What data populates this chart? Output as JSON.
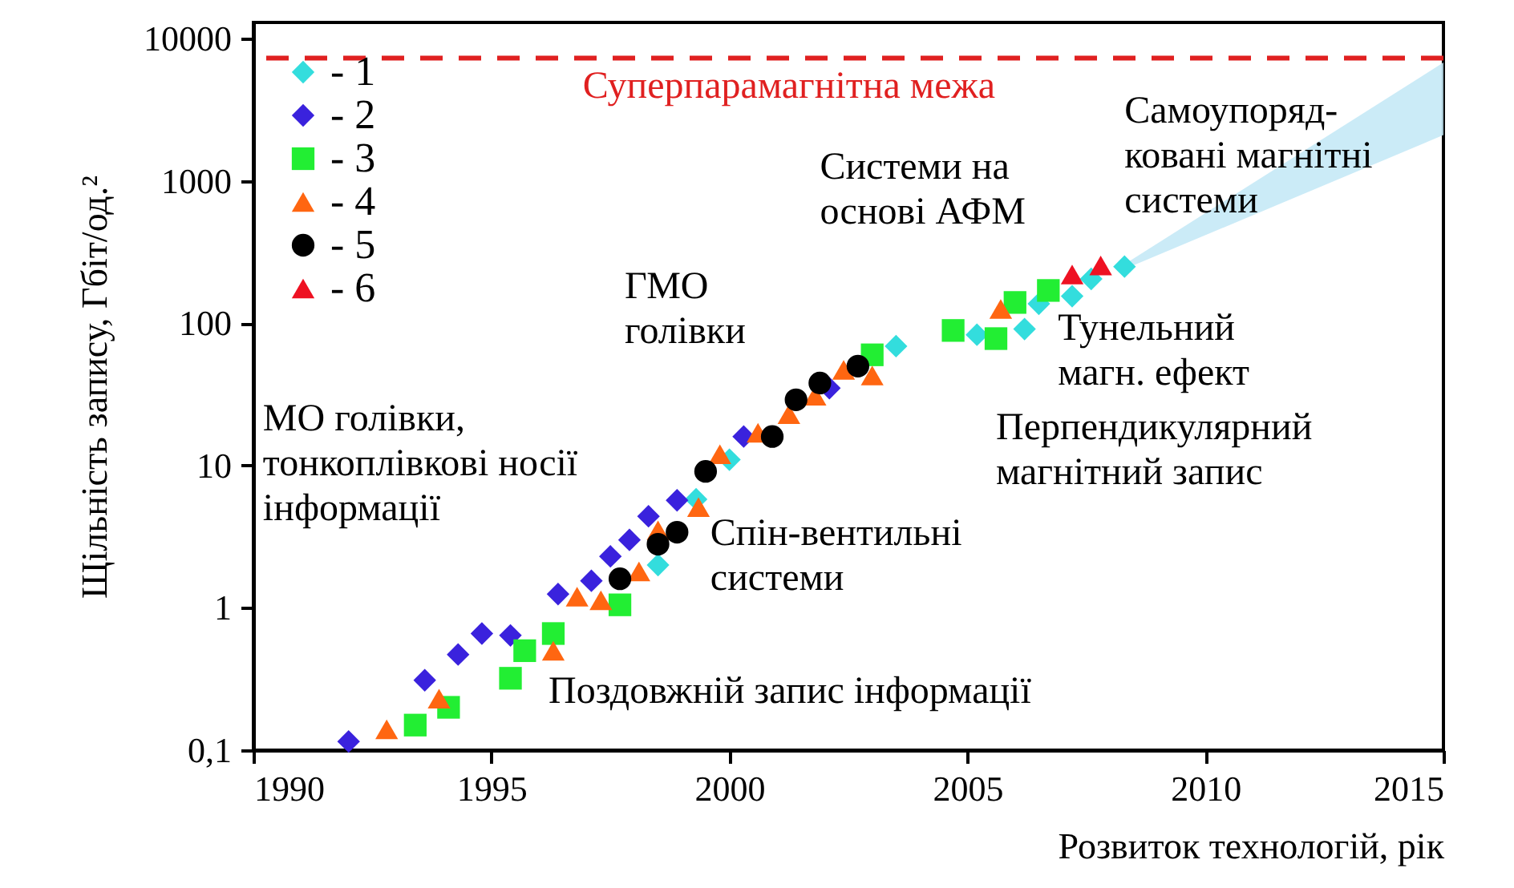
{
  "chart_data": {
    "type": "scatter",
    "xlabel": "Розвиток технологій, рік",
    "ylabel": "Щільність запису, Гбіт/од.²",
    "log": "y",
    "xlim": [
      1990,
      2015
    ],
    "xticks": [
      1990,
      1995,
      2000,
      2005,
      2010,
      2015
    ],
    "ylim": [
      0.1,
      13000
    ],
    "yticks": [
      {
        "value": 0.1,
        "label": "0,1"
      },
      1,
      10,
      100,
      1000,
      10000
    ],
    "grid": false,
    "legend": "top left",
    "series": [
      {
        "name": "- 1",
        "color": "#33dddd",
        "marker": "diamond",
        "x": [
          1998.5,
          1999.3,
          2000.0,
          2003.5,
          2005.2,
          2006.2,
          2006.5,
          2007.2,
          2007.6,
          2008.3
        ],
        "values": [
          2.0,
          5.8,
          11,
          69,
          83,
          91,
          137,
          155,
          205,
          250
        ]
      },
      {
        "name": "- 2",
        "color": "#3a22dd",
        "marker": "diamond",
        "x": [
          1992.0,
          1993.6,
          1994.3,
          1994.8,
          1995.4,
          1996.4,
          1997.1,
          1997.5,
          1997.9,
          1998.3,
          1998.9,
          2000.3,
          2002.1
        ],
        "values": [
          0.115,
          0.31,
          0.47,
          0.66,
          0.64,
          1.25,
          1.55,
          2.3,
          3.0,
          4.4,
          5.7,
          16,
          35
        ]
      },
      {
        "name": "- 3",
        "color": "#22ee33",
        "marker": "square",
        "x": [
          1993.4,
          1994.1,
          1995.4,
          1995.7,
          1996.3,
          1997.7,
          2003.0,
          2004.7,
          2005.6,
          2006.0,
          2006.7
        ],
        "values": [
          0.15,
          0.2,
          0.32,
          0.5,
          0.66,
          1.05,
          60,
          89,
          78,
          140,
          170
        ]
      },
      {
        "name": "- 4",
        "color": "#ff6611",
        "marker": "triangle",
        "x": [
          1992.8,
          1993.9,
          1996.3,
          1996.8,
          1997.3,
          1998.1,
          1998.5,
          1999.35,
          1999.8,
          2000.6,
          2001.25,
          2001.8,
          2002.4,
          2003.0,
          2005.7
        ],
        "values": [
          0.14,
          0.23,
          0.5,
          1.2,
          1.13,
          1.8,
          3.5,
          5.1,
          12,
          17,
          23,
          31,
          47,
          43,
          126
        ]
      },
      {
        "name": "- 5",
        "color": "#000000",
        "marker": "circle",
        "x": [
          1997.7,
          1998.5,
          1998.9,
          1999.5,
          2000.9,
          2001.4,
          2001.9,
          2002.7
        ],
        "values": [
          1.6,
          2.8,
          3.4,
          9.1,
          16,
          29,
          38,
          50
        ]
      },
      {
        "name": "- 6",
        "color": "#ee1122",
        "marker": "triangle",
        "x": [
          2007.2,
          2007.8
        ],
        "values": [
          220,
          255
        ]
      }
    ],
    "ref_lines": [
      {
        "axis": "y",
        "value": 7300,
        "label": "Суперпарамагнітна межа",
        "color": "#e02020",
        "line_style": "dashed"
      }
    ],
    "annotations": [
      "МО голівки,\nтонкоплівкові носії\nінформації",
      "ГМО\nголівки",
      "Системи на\nоснові АФМ",
      "Самоупоряд-\nковані магнітні\nсистеми",
      "Тунельний\nмагн. ефект",
      "Перпендикулярний\nмагнітний запис",
      "Спін-вентильні\nсистеми",
      "Поздовжній запис інформації"
    ]
  }
}
